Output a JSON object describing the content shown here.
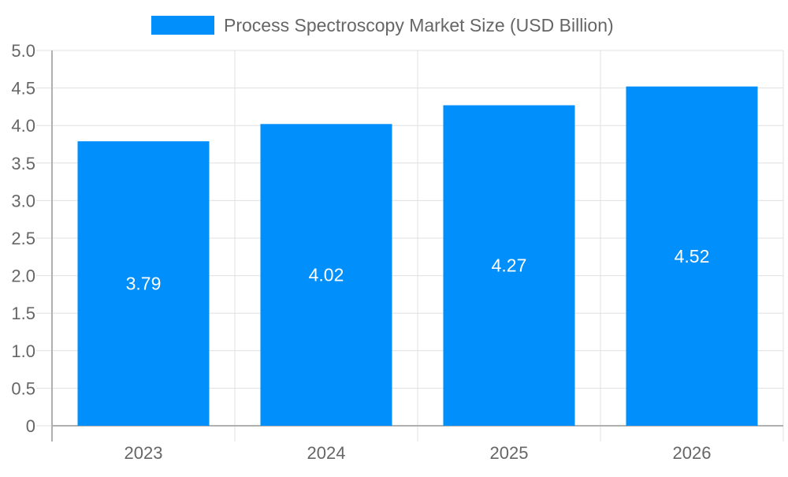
{
  "chart_data": {
    "type": "bar",
    "categories": [
      "2023",
      "2024",
      "2025",
      "2026"
    ],
    "series": [
      {
        "name": "Process Spectroscopy Market Size (USD Billion)",
        "values": [
          3.79,
          4.02,
          4.27,
          4.52
        ],
        "color": "#008ffb"
      }
    ],
    "data_labels": [
      "3.79",
      "4.02",
      "4.27",
      "4.52"
    ],
    "ylim": [
      0,
      5
    ],
    "yticks": [
      "0",
      "0.5",
      "1.0",
      "1.5",
      "2.0",
      "2.5",
      "3.0",
      "3.5",
      "4.0",
      "4.5",
      "5.0"
    ],
    "grid": true,
    "legend_position": "top",
    "colors": {
      "text": "#666666",
      "grid": "#e0e0e0",
      "axis": "#b0b0b0",
      "label": "#ffffff"
    }
  }
}
